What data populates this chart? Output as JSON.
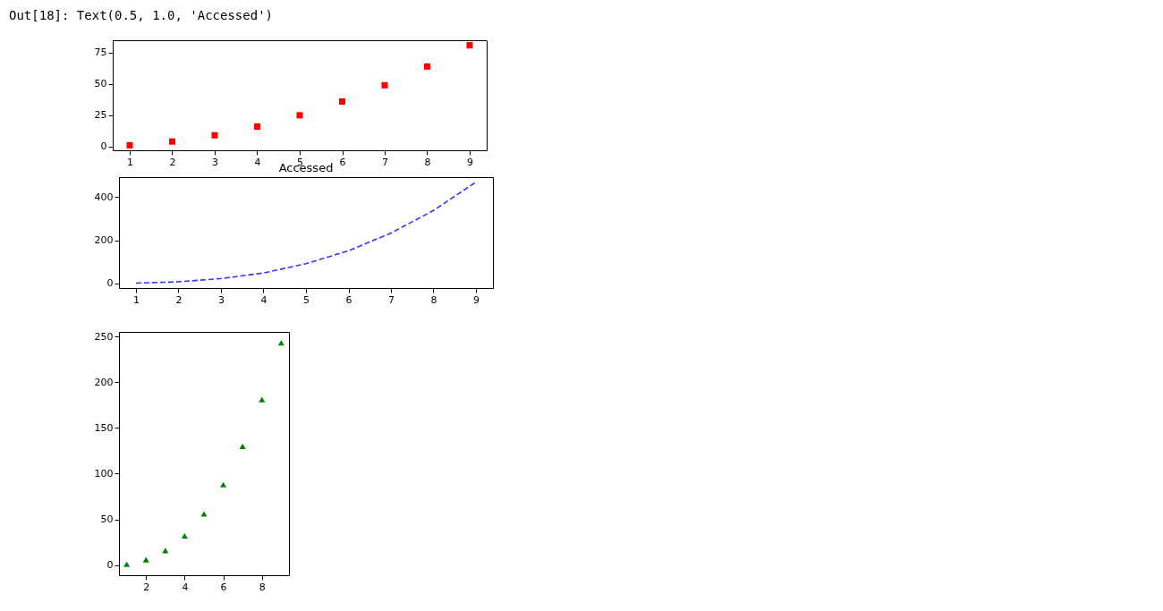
{
  "chart_data": [
    {
      "type": "scatter",
      "x": [
        1,
        2,
        3,
        4,
        5,
        6,
        7,
        8,
        9
      ],
      "values": [
        1,
        4,
        9,
        16,
        25,
        36,
        49,
        64,
        81
      ],
      "color": "#ff0000",
      "marker": "square",
      "xlim": [
        0.6,
        9.4
      ],
      "ylim": [
        -3,
        85
      ],
      "xticks": [
        1,
        2,
        3,
        4,
        5,
        6,
        7,
        8,
        9
      ],
      "yticks": [
        0,
        25,
        50,
        75
      ],
      "annotations": [
        "Out[18]: Text(0.5, 1.0, 'Accessed')"
      ]
    },
    {
      "type": "line",
      "title": "Accessed",
      "x": [
        1,
        2,
        3,
        4,
        5,
        6,
        7,
        8,
        9
      ],
      "values": [
        1,
        7,
        22,
        48,
        91,
        151,
        233,
        338,
        470
      ],
      "color": "#0000ff",
      "line_style": "dashed",
      "xlim": [
        0.6,
        9.4
      ],
      "ylim": [
        -22,
        493
      ],
      "xticks": [
        1,
        2,
        3,
        4,
        5,
        6,
        7,
        8,
        9
      ],
      "yticks": [
        0,
        200,
        400
      ]
    },
    {
      "type": "scatter",
      "x": [
        1,
        2,
        3,
        4,
        5,
        6,
        7,
        8,
        9
      ],
      "values": [
        1,
        6,
        16,
        32,
        56,
        88,
        130,
        181,
        243
      ],
      "color": "#008000",
      "marker": "triangle",
      "xlim": [
        0.6,
        9.4
      ],
      "ylim": [
        -11,
        255
      ],
      "xticks": [
        2,
        4,
        6,
        8
      ],
      "yticks": [
        0,
        50,
        100,
        150,
        200,
        250
      ]
    }
  ]
}
